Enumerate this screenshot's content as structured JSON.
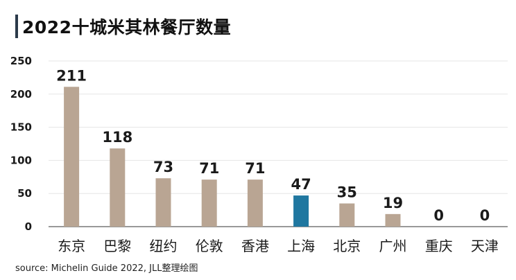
{
  "title": "2022十城米其林餐厅数量",
  "source": "source: Michelin Guide 2022, JLL整理绘图",
  "colors": {
    "bar": "#b9a593",
    "highlight": "#1f77a0",
    "grid": "#e6e6e6",
    "axis": "#333333"
  },
  "chart_data": {
    "type": "bar",
    "title": "2022十城米其林餐厅数量",
    "categories": [
      "东京",
      "巴黎",
      "纽约",
      "伦敦",
      "香港",
      "上海",
      "北京",
      "广州",
      "重庆",
      "天津"
    ],
    "values": [
      211,
      118,
      73,
      71,
      71,
      47,
      35,
      19,
      0,
      0
    ],
    "highlight_category": "上海",
    "ylim": [
      0,
      250
    ],
    "yticks": [
      0,
      50,
      100,
      150,
      200,
      250
    ],
    "grid": true,
    "legend": "none"
  }
}
